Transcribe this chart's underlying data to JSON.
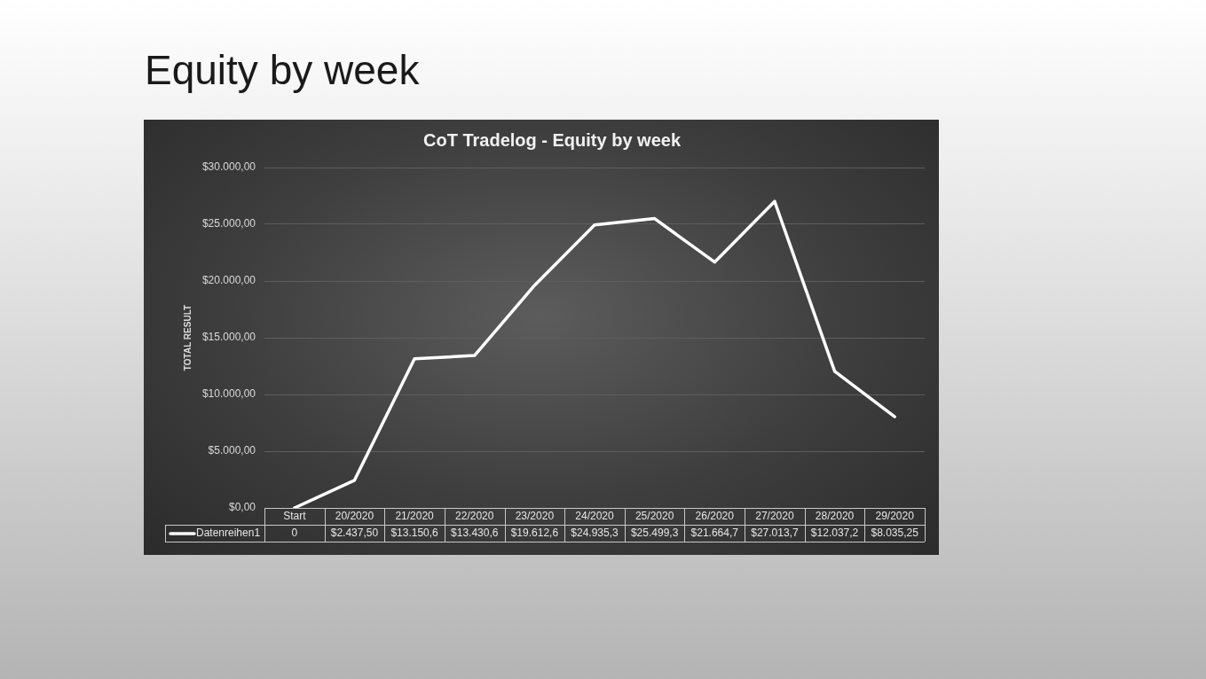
{
  "chart_data": {
    "type": "line",
    "title": "Equity by week",
    "subtitle": "CoT Tradelog - Equity by week",
    "ylabel": "TOTAL RESULT",
    "categories": [
      "Start",
      "20/2020",
      "21/2020",
      "22/2020",
      "23/2020",
      "24/2020",
      "25/2020",
      "26/2020",
      "27/2020",
      "28/2020",
      "29/2020"
    ],
    "series": [
      {
        "name": "Datenreihen1",
        "color": "#ffffff",
        "values": [
          0,
          2437.5,
          13150.6,
          13430.6,
          19612.6,
          24935.3,
          25499.3,
          21664.7,
          27013.7,
          12037.2,
          8035.25
        ],
        "value_labels": [
          "0",
          "$2.437,50",
          "$13.150,6",
          "$13.430,6",
          "$19.612,6",
          "$24.935,3",
          "$25.499,3",
          "$21.664,7",
          "$27.013,7",
          "$12.037,2",
          "$8.035,25"
        ]
      }
    ],
    "ylim": [
      0,
      30000
    ],
    "yticks": [
      {
        "value": 0,
        "label": "$0,00"
      },
      {
        "value": 5000,
        "label": "$5.000,00"
      },
      {
        "value": 10000,
        "label": "$10.000,00"
      },
      {
        "value": 15000,
        "label": "$15.000,00"
      },
      {
        "value": 20000,
        "label": "$20.000,00"
      },
      {
        "value": 25000,
        "label": "$25.000,00"
      },
      {
        "value": 30000,
        "label": "$30.000,00"
      }
    ],
    "grid": "y",
    "legend": "bottom",
    "marker": "none",
    "line_style": "solid"
  }
}
